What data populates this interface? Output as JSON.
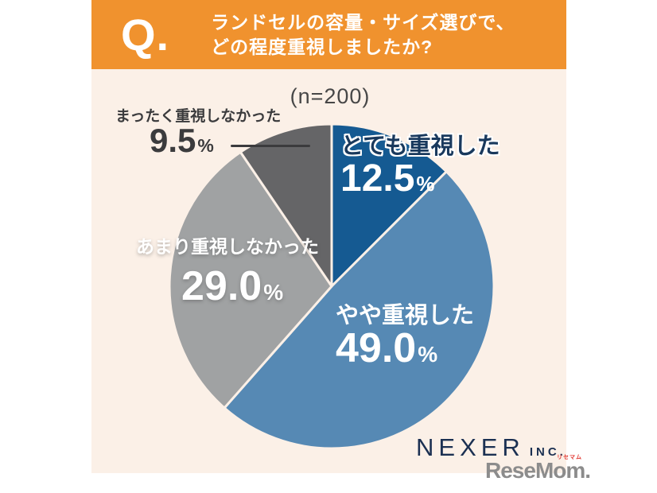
{
  "header": {
    "q_label": "Q.",
    "title_lines": [
      "ランドセルの容量・サイズ選びで、",
      "どの程度重視しましたか?"
    ]
  },
  "survey": {
    "sample_label": "(n=200)"
  },
  "chart_data": {
    "type": "pie",
    "title": "ランドセルの容量・サイズ選びで、どの程度重視しましたか?",
    "sample_size": 200,
    "start_angle_deg": 0,
    "direction": "clockwise",
    "segments": [
      {
        "label": "とても重視した",
        "value": 12.5,
        "display": "12.5",
        "unit": "%",
        "color": "#155a92"
      },
      {
        "label": "やや重視した",
        "value": 49.0,
        "display": "49.0",
        "unit": "%",
        "color": "#5689b4"
      },
      {
        "label": "あまり重視しなかった",
        "value": 29.0,
        "display": "29.0",
        "unit": "%",
        "color": "#a0a2a3"
      },
      {
        "label": "まったく重視しなかった",
        "value": 9.5,
        "display": "9.5",
        "unit": "%",
        "color": "#656567"
      }
    ],
    "colors": {
      "header_banner": "#f0922e",
      "chart_background": "#fbf0e7",
      "slice_separator": "#fbf0e7"
    },
    "legend_position": "around-slices"
  },
  "branding": {
    "nexer": "NEXER",
    "nexer_suffix": "INC.",
    "resemom": "ReseMom.",
    "resemom_ruby": "リセマム"
  }
}
